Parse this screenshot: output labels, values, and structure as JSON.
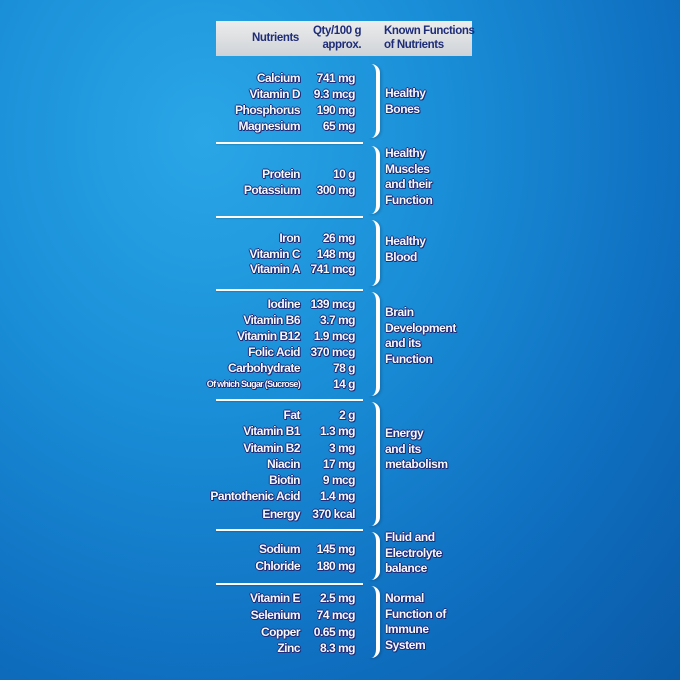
{
  "header": {
    "nutrients": "Nutrients",
    "qty_line1": "Qty/100 g",
    "qty_line2": "approx.",
    "functions_line1": "Known Functions",
    "functions_line2": "of Nutrients"
  },
  "groups": [
    {
      "function": [
        "Healthy",
        "Bones"
      ],
      "rows": [
        {
          "name": "Calcium",
          "qty": "741 mg"
        },
        {
          "name": "Vitamin D",
          "qty": "9.3 mcg"
        },
        {
          "name": "Phosphorus",
          "qty": "190 mg"
        },
        {
          "name": "Magnesium",
          "qty": "65 mg"
        }
      ]
    },
    {
      "function": [
        "Healthy",
        "Muscles",
        "and their",
        "Function"
      ],
      "rows": [
        {
          "name": "Protein",
          "qty": "10 g"
        },
        {
          "name": "Potassium",
          "qty": "300 mg"
        }
      ]
    },
    {
      "function": [
        "Healthy",
        "Blood"
      ],
      "rows": [
        {
          "name": "Iron",
          "qty": "26 mg"
        },
        {
          "name": "Vitamin C",
          "qty": "148 mg"
        },
        {
          "name": "Vitamin A",
          "qty": "741 mcg"
        }
      ]
    },
    {
      "function": [
        "Brain",
        "Development",
        "and its",
        "Function"
      ],
      "rows": [
        {
          "name": "Iodine",
          "qty": "139 mcg"
        },
        {
          "name": "Vitamin B6",
          "qty": "3.7 mg"
        },
        {
          "name": "Vitamin B12",
          "qty": "1.9 mcg"
        },
        {
          "name": "Folic Acid",
          "qty": "370 mcg"
        },
        {
          "name": "Carbohydrate",
          "qty": "78 g"
        },
        {
          "name": "Of which Sugar (Sucrose)",
          "qty": "14 g"
        }
      ]
    },
    {
      "function": [
        "Energy",
        "and its",
        "metabolism"
      ],
      "rows": [
        {
          "name": "Fat",
          "qty": "2 g"
        },
        {
          "name": "Vitamin B1",
          "qty": "1.3 mg"
        },
        {
          "name": "Vitamin B2",
          "qty": "3 mg"
        },
        {
          "name": "Niacin",
          "qty": "17 mg"
        },
        {
          "name": "Biotin",
          "qty": "9 mcg"
        },
        {
          "name": "Pantothenic Acid",
          "qty": "1.4 mg"
        },
        {
          "name": "Energy",
          "qty": "370 kcal"
        }
      ]
    },
    {
      "function": [
        "Fluid and",
        "Electrolyte",
        "balance"
      ],
      "rows": [
        {
          "name": "Sodium",
          "qty": "145 mg"
        },
        {
          "name": "Chloride",
          "qty": "180 mg"
        }
      ]
    },
    {
      "function": [
        "Normal",
        "Function of",
        "Immune",
        "System"
      ],
      "rows": [
        {
          "name": "Vitamin E",
          "qty": "2.5 mg"
        },
        {
          "name": "Selenium",
          "qty": "74 mcg"
        },
        {
          "name": "Copper",
          "qty": "0.65 mg"
        },
        {
          "name": "Zinc",
          "qty": "8.3 mg"
        }
      ]
    }
  ]
}
